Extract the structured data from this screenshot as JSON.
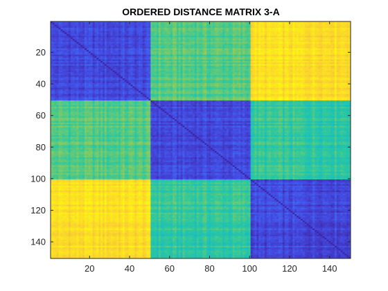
{
  "chart_data": {
    "type": "heatmap",
    "title": "ORDERED DISTANCE MATRIX 3-A",
    "xlabel": "",
    "ylabel": "",
    "size": 150,
    "xlim": [
      0.5,
      150.5
    ],
    "ylim": [
      0.5,
      150.5
    ],
    "y_direction": "reverse",
    "x_ticks": [
      20,
      40,
      60,
      80,
      100,
      120,
      140
    ],
    "y_ticks": [
      20,
      40,
      60,
      80,
      100,
      120,
      140
    ],
    "x_tick_labels": [
      "20",
      "40",
      "60",
      "80",
      "100",
      "120",
      "140"
    ],
    "y_tick_labels": [
      "20",
      "40",
      "60",
      "80",
      "100",
      "120",
      "140"
    ],
    "block_boundaries": [
      1,
      51,
      101,
      151
    ],
    "block_levels": [
      [
        0.1,
        0.55,
        0.9
      ],
      [
        0.55,
        0.1,
        0.5
      ],
      [
        0.9,
        0.5,
        0.1
      ]
    ],
    "diagonal_level": 0.0,
    "colormap": "parula",
    "colormap_stops": [
      "#3e26a8",
      "#4450e8",
      "#2f8df5",
      "#12b5d0",
      "#2bc8a0",
      "#8cca5c",
      "#e7ba3a",
      "#fcd62b",
      "#f9fb0e"
    ],
    "grid": false,
    "legend": "none"
  }
}
